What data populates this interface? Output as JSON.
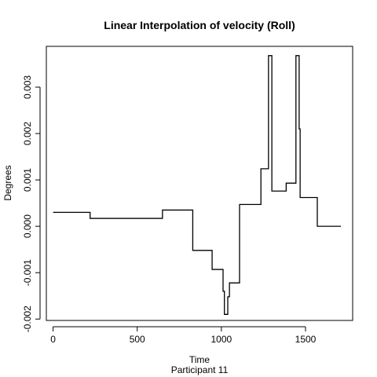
{
  "chart_data": {
    "type": "line",
    "title": "Linear Interpolation of velocity (Roll)",
    "xlabel": "Time",
    "ylabel": "Degrees",
    "subtitle": "Participant  11",
    "xlim": [
      -40,
      1780
    ],
    "ylim": [
      -0.00203,
      0.00388
    ],
    "xticks": [
      0,
      500,
      1000,
      1500
    ],
    "xtick_labels": [
      "0",
      "500",
      "1000",
      "1500"
    ],
    "yticks": [
      -0.002,
      -0.001,
      0.0,
      0.001,
      0.002,
      0.003
    ],
    "ytick_labels": [
      "-0.002",
      "-0.001",
      "0.000",
      "0.001",
      "0.002",
      "0.003"
    ],
    "grid": false,
    "line_color": "#000000",
    "series": [
      {
        "x": [
          0,
          220,
          220,
          650,
          650,
          830,
          830,
          945,
          945,
          1010,
          1010,
          1018,
          1018,
          1038,
          1038,
          1048,
          1048,
          1090,
          1090,
          1108,
          1108,
          1235,
          1235,
          1280,
          1280,
          1300,
          1300,
          1385,
          1385,
          1443,
          1443,
          1462,
          1462,
          1468,
          1468,
          1570,
          1570,
          1710
        ],
        "y": [
          0.0003,
          0.0003,
          0.00017,
          0.00017,
          0.00035,
          0.00035,
          -0.00052,
          -0.00052,
          -0.00093,
          -0.00093,
          -0.0014,
          -0.0014,
          -0.0019,
          -0.0019,
          -0.00152,
          -0.00152,
          -0.00122,
          -0.00122,
          -0.00122,
          -0.00122,
          0.00047,
          0.00047,
          0.00124,
          0.00124,
          0.00368,
          0.00368,
          0.00076,
          0.00076,
          0.00093,
          0.00093,
          0.00368,
          0.00368,
          0.0021,
          0.0021,
          0.00062,
          0.00062,
          0.0,
          0.0
        ]
      }
    ]
  }
}
